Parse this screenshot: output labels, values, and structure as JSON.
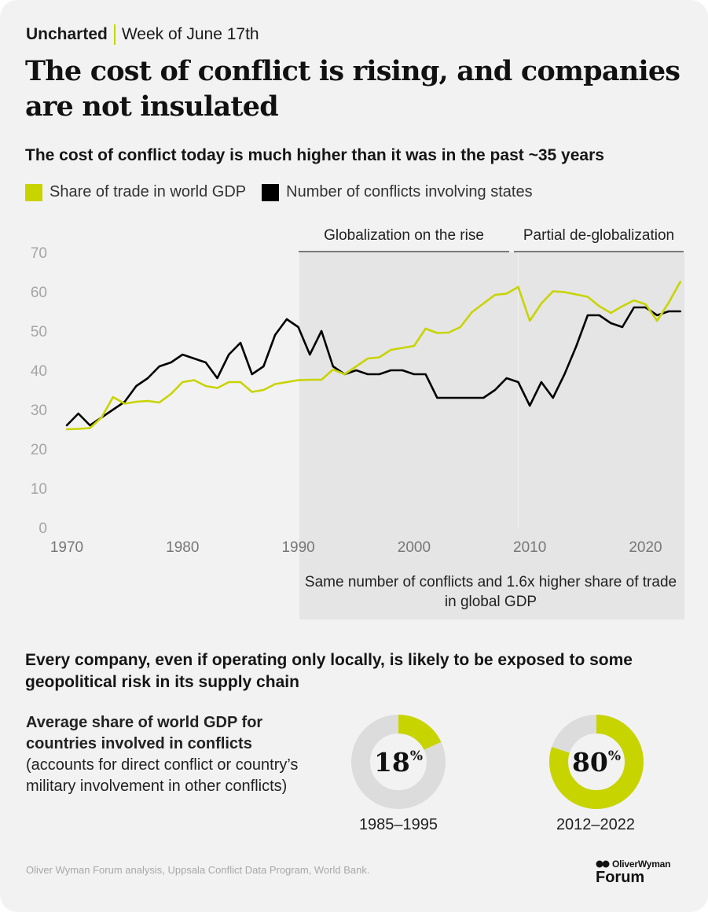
{
  "header": {
    "brand": "Uncharted",
    "week": "Week of June 17th"
  },
  "title": "The cost of conflict is rising, and companies are not insulated",
  "colors": {
    "accent": "#c8d400",
    "line_dark": "#000000",
    "shade": "#e5e5e5",
    "donut_bg": "#dcdcdc"
  },
  "chart_data": {
    "type": "line",
    "title": "The cost of conflict today is much higher than it was in the past ~35 years",
    "x_ticks": [
      1970,
      1980,
      1990,
      2000,
      2010,
      2020
    ],
    "y_ticks": [
      0,
      10,
      20,
      30,
      40,
      50,
      60,
      70
    ],
    "xlim": [
      1969,
      2023.5
    ],
    "ylim": [
      0,
      70
    ],
    "series": [
      {
        "name": "Share of trade in world GDP",
        "color": "#c8d400",
        "x": [
          1970,
          1971,
          1972,
          1973,
          1974,
          1975,
          1976,
          1977,
          1978,
          1979,
          1980,
          1981,
          1982,
          1983,
          1984,
          1985,
          1986,
          1987,
          1988,
          1989,
          1990,
          1991,
          1992,
          1993,
          1994,
          1995,
          1996,
          1997,
          1998,
          1999,
          2000,
          2001,
          2002,
          2003,
          2004,
          2005,
          2006,
          2007,
          2008,
          2009,
          2010,
          2011,
          2012,
          2013,
          2014,
          2015,
          2016,
          2017,
          2018,
          2019,
          2020,
          2021,
          2022,
          2023
        ],
        "values": [
          25.0,
          25.1,
          25.3,
          28.0,
          33.2,
          31.5,
          32.0,
          32.2,
          31.8,
          34.0,
          37.0,
          37.5,
          36.0,
          35.5,
          37.0,
          37.0,
          34.5,
          35.0,
          36.5,
          37.0,
          37.5,
          37.6,
          37.6,
          40.2,
          39.0,
          41.0,
          43.0,
          43.3,
          45.2,
          45.7,
          46.2,
          50.6,
          49.5,
          49.6,
          51.0,
          54.8,
          57.0,
          59.2,
          59.5,
          61.2,
          52.6,
          57.0,
          60.1,
          59.9,
          59.3,
          58.7,
          56.3,
          54.6,
          56.3,
          57.8,
          56.8,
          52.6,
          57.2,
          62.5
        ]
      },
      {
        "name": "Number of conflicts involving states",
        "color": "#000000",
        "x": [
          1970,
          1971,
          1972,
          1973,
          1974,
          1975,
          1976,
          1977,
          1978,
          1979,
          1980,
          1981,
          1982,
          1983,
          1984,
          1985,
          1986,
          1987,
          1988,
          1989,
          1990,
          1991,
          1992,
          1993,
          1994,
          1995,
          1996,
          1997,
          1998,
          1999,
          2000,
          2001,
          2002,
          2003,
          2004,
          2005,
          2006,
          2007,
          2008,
          2009,
          2010,
          2011,
          2012,
          2013,
          2014,
          2015,
          2016,
          2017,
          2018,
          2019,
          2020,
          2021,
          2022,
          2023
        ],
        "values": [
          26,
          29,
          26,
          28,
          30,
          32,
          36,
          38,
          41,
          42,
          44,
          43,
          42,
          38,
          44,
          47,
          39,
          41,
          49,
          53,
          51,
          44,
          50,
          41,
          39,
          40,
          39,
          39,
          40,
          40,
          39,
          39,
          33,
          33,
          33,
          33,
          33,
          35,
          38,
          37,
          31,
          37,
          33,
          39,
          46,
          54,
          54,
          52,
          51,
          56,
          56,
          54,
          55,
          55
        ]
      }
    ],
    "bands": [
      {
        "label": "Globalization on the rise",
        "from": 1990,
        "to": 2009
      },
      {
        "label": "Partial de-globalization",
        "from": 2009,
        "to": 2023.5
      }
    ],
    "annotation": "Same number of conflicts and 1.6x higher share of trade in global GDP",
    "grid": false
  },
  "section2": {
    "heading": "Every company, even if operating only locally, is likely to be exposed to some geopolitical risk in its supply chain"
  },
  "avg": {
    "bold": "Average share of world GDP for countries involved in conflicts",
    "normal": "(accounts for direct conflict or country’s military involvement in other conflicts)"
  },
  "donuts": [
    {
      "value": 18,
      "number": "18",
      "unit": "%",
      "period": "1985–1995"
    },
    {
      "value": 80,
      "number": "80",
      "unit": "%",
      "period": "2012–2022"
    }
  ],
  "source": "Oliver Wyman Forum analysis, Uppsala Conflict Data Program, World Bank.",
  "logo": {
    "line1": "OliverWyman",
    "line2": "Forum"
  }
}
